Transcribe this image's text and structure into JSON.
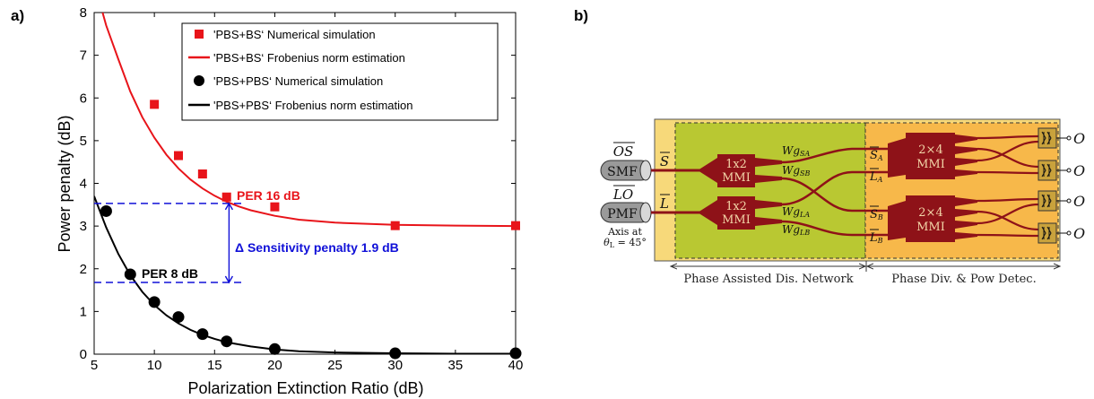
{
  "panels": {
    "a": "a)",
    "b": "b)"
  },
  "chart_data": {
    "type": "scatter",
    "xlabel": "Polarization Extinction Ratio (dB)",
    "ylabel": "Power penalty (dB)",
    "xlim": [
      5,
      40
    ],
    "ylim": [
      0,
      8
    ],
    "xticks": [
      5,
      10,
      15,
      20,
      25,
      30,
      35,
      40
    ],
    "yticks": [
      0,
      1,
      2,
      3,
      4,
      5,
      6,
      7,
      8
    ],
    "legend_position": "top-right",
    "series": [
      {
        "name": "'PBS+BS‘   Numerical simulation",
        "kind": "points",
        "marker": "square",
        "color": "#e8141a",
        "x": [
          10,
          12,
          14,
          16,
          20,
          30,
          40
        ],
        "y": [
          5.85,
          4.65,
          4.22,
          3.68,
          3.45,
          3.01,
          3.01
        ]
      },
      {
        "name": "'PBS+BS‘   Frobenius norm estimation",
        "kind": "line",
        "color": "#e8141a",
        "x": [
          5.7,
          6,
          7,
          8,
          9,
          10,
          11,
          12,
          13,
          14,
          15,
          16,
          17,
          18,
          20,
          22,
          25,
          30,
          35,
          40
        ],
        "y": [
          8.0,
          7.7,
          6.91,
          6.15,
          5.55,
          5.07,
          4.67,
          4.35,
          4.09,
          3.88,
          3.71,
          3.57,
          3.46,
          3.37,
          3.24,
          3.15,
          3.08,
          3.03,
          3.01,
          3.0
        ]
      },
      {
        "name": "'PBS+PBS‘ Numerical simulation",
        "kind": "points",
        "marker": "circle",
        "color": "#000000",
        "x": [
          6,
          8,
          10,
          12,
          14,
          16,
          20,
          30,
          40
        ],
        "y": [
          3.35,
          1.87,
          1.22,
          0.87,
          0.47,
          0.3,
          0.12,
          0.02,
          0.02
        ]
      },
      {
        "name": "'PBS+PBS‘ Frobenius norm estimation",
        "kind": "line",
        "color": "#000000",
        "x": [
          5,
          6,
          7,
          8,
          9,
          10,
          11,
          12,
          13,
          14,
          15,
          16,
          18,
          20,
          22,
          25,
          30,
          35,
          40
        ],
        "y": [
          3.7,
          2.97,
          2.35,
          1.85,
          1.46,
          1.15,
          0.91,
          0.72,
          0.57,
          0.45,
          0.36,
          0.28,
          0.18,
          0.11,
          0.07,
          0.04,
          0.02,
          0.01,
          0.01
        ]
      }
    ],
    "reference_lines": {
      "color": "#1010d8",
      "y_values": [
        3.53,
        1.68
      ],
      "x_start": 5,
      "x_end": 16.2
    },
    "annotations": {
      "per16": {
        "text": "PER 16 dB",
        "color": "#e8141a"
      },
      "per8": {
        "text": "PER 8 dB",
        "color": "#000000"
      },
      "sensitivity": {
        "text": "Δ Sensitivity penalty 1.9 dB",
        "color": "#1010d8",
        "arrow_x": 16.2,
        "arrow_from": 3.53,
        "arrow_to": 1.68
      }
    }
  },
  "diagram": {
    "colors": {
      "outer": "#f7d97a",
      "left_region": "#b9c832",
      "right_region": "#f7b84a",
      "block": "#8e1218",
      "waveguide": "#8e1218",
      "detector": "#c9a23c"
    },
    "inputs": [
      {
        "signal": "OS",
        "fiber": "SMF",
        "port": "S"
      },
      {
        "signal": "LO",
        "fiber": "PMF",
        "port": "L"
      }
    ],
    "axis_note_1": "Axis at",
    "axis_note_2": "θ",
    "axis_note_sub": "L",
    "axis_note_3": " = 45°",
    "mmi_small": {
      "line1": "1x2",
      "line2": "MMI"
    },
    "mmi_large": {
      "line1": "2×4",
      "line2": "MMI"
    },
    "waveguide_labels": {
      "wg_sa": {
        "main": "Wg",
        "sub": "SA"
      },
      "wg_sb": {
        "main": "Wg",
        "sub": "SB"
      },
      "wg_la": {
        "main": "Wg",
        "sub": "LA"
      },
      "wg_lb": {
        "main": "Wg",
        "sub": "LB"
      }
    },
    "node_labels": {
      "s_a": {
        "main": "S",
        "sub": "A"
      },
      "l_a": {
        "main": "L",
        "sub": "A"
      },
      "s_b": {
        "main": "S",
        "sub": "B"
      },
      "l_b": {
        "main": "L",
        "sub": "B"
      }
    },
    "outputs": [
      "O",
      "O",
      "O",
      "O"
    ],
    "sections": [
      "Phase Assisted Dis. Network",
      "Phase Div. & Pow Detec."
    ]
  }
}
